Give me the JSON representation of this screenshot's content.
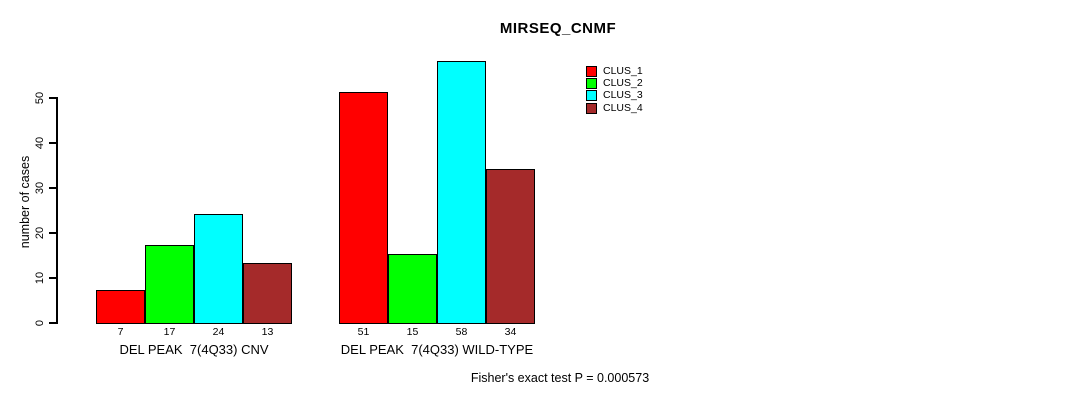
{
  "chart_data": {
    "type": "bar",
    "title": "MIRSEQ_CNMF",
    "ylabel": "number of cases",
    "xlabel": "",
    "ylim": [
      0,
      58
    ],
    "yticks": [
      0,
      10,
      20,
      30,
      40,
      50
    ],
    "grid": false,
    "legend_position": "top-right-outside",
    "categories": [
      "DEL PEAK  7(4Q33) CNV",
      "DEL PEAK  7(4Q33) WILD-TYPE"
    ],
    "series": [
      {
        "name": "CLUS_1",
        "color": "#FF0000",
        "values": [
          7,
          51
        ]
      },
      {
        "name": "CLUS_2",
        "color": "#00FF00",
        "values": [
          17,
          15
        ]
      },
      {
        "name": "CLUS_3",
        "color": "#00FFFF",
        "values": [
          24,
          58
        ]
      },
      {
        "name": "CLUS_4",
        "color": "#A52A2A",
        "values": [
          13,
          34
        ]
      }
    ],
    "bar_value_labels_shown": true,
    "annotation": "Fisher's exact test P = 0.000573",
    "colors": {
      "background": "#FFFFFF",
      "axis": "#000000",
      "bar_border": "#000000",
      "text": "#000000"
    }
  }
}
